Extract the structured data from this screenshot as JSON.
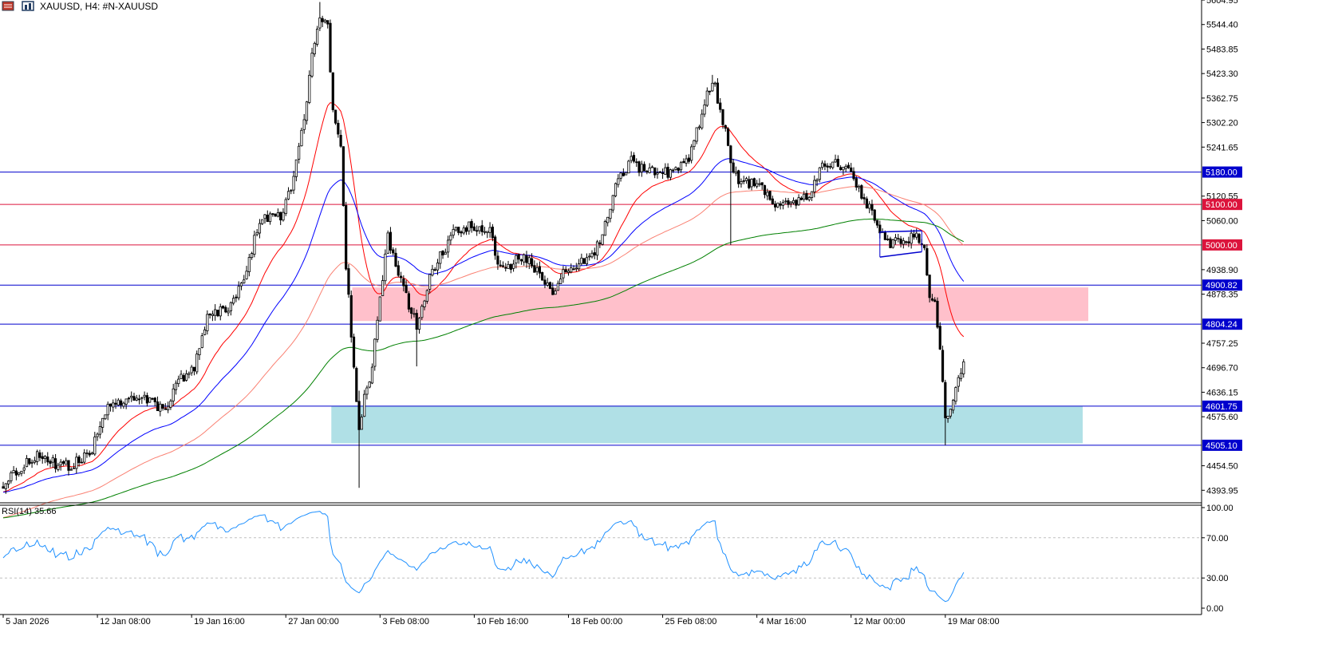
{
  "toolbar": {
    "symbol_label": "XAUUSD, H4:  #N-XAUUSD"
  },
  "colors": {
    "candle": "#000000",
    "ema_fast": "#ff0000",
    "ema_mid": "#0000ff",
    "ema_slow": "#fa8072",
    "ema_long": "#008000",
    "hline_blue": "#0000cd",
    "hline_red": "#dc143c",
    "rsi": "#1e90ff",
    "zone_supply": "#ffc0cb",
    "zone_demand": "#b0e0e6",
    "grid": "#c0c0c0"
  },
  "chart_data": [
    {
      "type": "candlestick",
      "symbol": "XAUUSD",
      "timeframe": "H4",
      "ylim": [
        4363.0,
        5605.0
      ],
      "yticks": [
        "5604.95",
        "5544.40",
        "5483.85",
        "5423.30",
        "5362.75",
        "5302.20",
        "5241.65",
        "5120.55",
        "5060.00",
        "4938.90",
        "4878.35",
        "4757.25",
        "4696.70",
        "4636.15",
        "4575.60",
        "4454.50",
        "4393.95"
      ],
      "xticks": [
        "5 Jan 2026",
        "12 Jan 08:00",
        "19 Jan 16:00",
        "27 Jan 00:00",
        "3 Feb 08:00",
        "10 Feb 16:00",
        "18 Feb 00:00",
        "25 Feb 08:00",
        "4 Mar 16:00",
        "12 Mar 00:00",
        "19 Mar 08:00"
      ],
      "xtick_bars": [
        0,
        36,
        72,
        108,
        144,
        180,
        216,
        252,
        288,
        324,
        360
      ],
      "bar_count": 368,
      "anchors": [
        [
          0,
          4408
        ],
        [
          8,
          4455
        ],
        [
          12,
          4480
        ],
        [
          20,
          4460
        ],
        [
          25,
          4455
        ],
        [
          33,
          4480
        ],
        [
          40,
          4600
        ],
        [
          48,
          4615
        ],
        [
          55,
          4615
        ],
        [
          62,
          4595
        ],
        [
          67,
          4665
        ],
        [
          73,
          4700
        ],
        [
          79,
          4840
        ],
        [
          85,
          4830
        ],
        [
          91,
          4900
        ],
        [
          98,
          5060
        ],
        [
          106,
          5070
        ],
        [
          110,
          5140
        ],
        [
          114,
          5270
        ],
        [
          118,
          5460
        ],
        [
          121,
          5560
        ],
        [
          124,
          5550
        ],
        [
          126,
          5330
        ],
        [
          129,
          5250
        ],
        [
          131,
          4950
        ],
        [
          134,
          4700
        ],
        [
          136,
          4550
        ],
        [
          138,
          4620
        ],
        [
          141,
          4700
        ],
        [
          144,
          4860
        ],
        [
          147,
          5020
        ],
        [
          150,
          4950
        ],
        [
          154,
          4870
        ],
        [
          158,
          4800
        ],
        [
          162,
          4900
        ],
        [
          166,
          4960
        ],
        [
          172,
          5030
        ],
        [
          178,
          5050
        ],
        [
          183,
          5030
        ],
        [
          186,
          5040
        ],
        [
          189,
          4950
        ],
        [
          192,
          4940
        ],
        [
          199,
          4980
        ],
        [
          205,
          4920
        ],
        [
          210,
          4880
        ],
        [
          214,
          4930
        ],
        [
          220,
          4960
        ],
        [
          226,
          4980
        ],
        [
          230,
          5050
        ],
        [
          235,
          5160
        ],
        [
          240,
          5210
        ],
        [
          245,
          5180
        ],
        [
          252,
          5180
        ],
        [
          258,
          5180
        ],
        [
          263,
          5230
        ],
        [
          266,
          5300
        ],
        [
          269,
          5380
        ],
        [
          272,
          5390
        ],
        [
          276,
          5280
        ],
        [
          279,
          5170
        ],
        [
          283,
          5160
        ],
        [
          287,
          5150
        ],
        [
          292,
          5130
        ],
        [
          297,
          5090
        ],
        [
          303,
          5110
        ],
        [
          308,
          5130
        ],
        [
          313,
          5190
        ],
        [
          318,
          5200
        ],
        [
          323,
          5180
        ],
        [
          327,
          5140
        ],
        [
          333,
          5070
        ],
        [
          338,
          5000
        ],
        [
          344,
          5010
        ],
        [
          349,
          5020
        ],
        [
          352,
          4980
        ],
        [
          354,
          4870
        ],
        [
          356,
          4850
        ],
        [
          358,
          4730
        ],
        [
          360,
          4580
        ],
        [
          362,
          4600
        ],
        [
          364,
          4640
        ],
        [
          367,
          4700
        ]
      ],
      "candle_seed": 20260319,
      "indicators": [
        {
          "kind": "EMA",
          "period": 21,
          "color": "#ff0000"
        },
        {
          "kind": "EMA",
          "period": 50,
          "color": "#0000ff"
        },
        {
          "kind": "EMA",
          "period": 100,
          "color": "#fa8072"
        },
        {
          "kind": "EMA",
          "period": 200,
          "color": "#008000"
        }
      ],
      "indicator_warmup_start": 4325,
      "horizontal_levels": [
        {
          "price": 5180.0,
          "label": "5180.00",
          "color": "#0000cd"
        },
        {
          "price": 5100.0,
          "label": "5100.00",
          "color": "#dc143c"
        },
        {
          "price": 5000.0,
          "label": "5000.00",
          "color": "#dc143c"
        },
        {
          "price": 4900.82,
          "label": "4900.82",
          "color": "#0000cd"
        },
        {
          "price": 4804.24,
          "label": "4804.24",
          "color": "#0000cd"
        },
        {
          "price": 4601.75,
          "label": "4601.75",
          "color": "#0000cd"
        },
        {
          "price": 4505.1,
          "label": "4505.10",
          "color": "#0000cd"
        }
      ],
      "zones": [
        {
          "from_bar": 134,
          "to_bar": 368,
          "to_right": 1364,
          "top": 4895.0,
          "bottom": 4812.0,
          "color": "#ffc0cb"
        },
        {
          "from_bar": 126,
          "to_bar": 368,
          "to_right": 1357,
          "top": 4601.75,
          "bottom": 4510.0,
          "color": "#b0e0e6"
        }
      ],
      "channel": {
        "bar_start": 335,
        "bar_end": 351,
        "upper": [
          5032.0,
          5035.0
        ],
        "lower": [
          4970.0,
          4983.0
        ],
        "color": "#0000cd"
      }
    },
    {
      "type": "line",
      "indicator": "RSI",
      "label": "RSI(14) 35.66",
      "ylim": [
        0,
        100
      ],
      "yticks": [
        "100.00",
        "70.00",
        "30.00",
        "0.00"
      ],
      "levels": [
        70,
        30
      ],
      "period": 14
    }
  ]
}
